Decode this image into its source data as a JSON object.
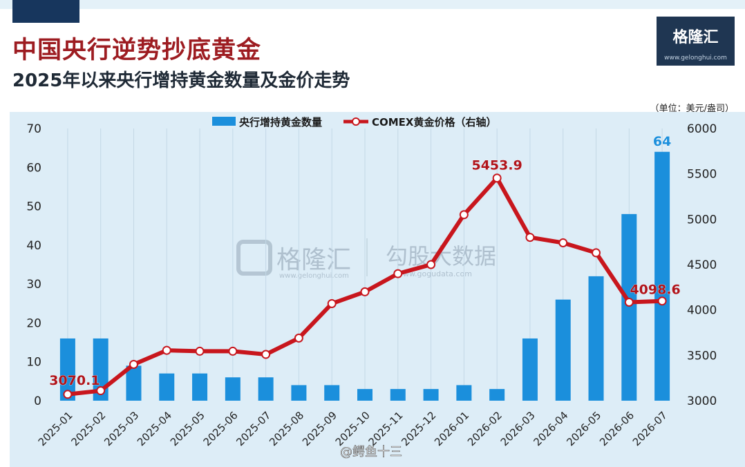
{
  "header": {
    "title": "中国央行逆势抄底黄金",
    "subtitle": "2025年以来央行增持黄金数量及金价走势",
    "unit": "（单位：美元/盎司）",
    "logo_text": "格隆汇",
    "logo_url": "www.gelonghui.com"
  },
  "watermark": {
    "brand": "格隆汇",
    "brand_url": "www.gelonghui.com",
    "source": "勾股大数据",
    "source_url": "www.gogudata.com",
    "weibo": "@鳄鱼十三"
  },
  "colors": {
    "bar": "#1b8fdc",
    "line": "#c8161d",
    "background": "#ddedf7",
    "bar_label": "#1b8fdc",
    "line_label": "#b0141b"
  },
  "chart_data": {
    "type": "bar+line",
    "categories": [
      "2025-01",
      "2025-02",
      "2025-03",
      "2025-04",
      "2025-05",
      "2025-06",
      "2025-07",
      "2025-08",
      "2025-09",
      "2025-10",
      "2025-11",
      "2025-12",
      "2026-01",
      "2026-02",
      "2026-03",
      "2026-04",
      "2026-05",
      "2026-06",
      "2026-07"
    ],
    "series": [
      {
        "name": "央行增持黄金数量",
        "type": "bar",
        "axis": "left",
        "values": [
          16,
          16,
          9,
          7,
          7,
          6,
          6,
          4,
          4,
          3,
          3,
          3,
          4,
          3,
          16,
          26,
          32,
          48,
          64
        ]
      },
      {
        "name": "COMEX黄金价格（右轴）",
        "type": "line",
        "axis": "right",
        "values": [
          3070.1,
          3110,
          3400,
          3555,
          3545,
          3545,
          3510,
          3690,
          4070,
          4200,
          4400,
          4500,
          5050,
          5453.9,
          4800,
          4740,
          4630,
          4085,
          4098.6
        ]
      }
    ],
    "left_axis": {
      "ylim": [
        0,
        70
      ],
      "ticks": [
        0,
        10,
        20,
        30,
        40,
        50,
        60,
        70
      ]
    },
    "right_axis": {
      "ylim": [
        3000,
        6000
      ],
      "ticks": [
        3000,
        3500,
        4000,
        4500,
        5000,
        5500,
        6000
      ]
    },
    "data_labels": [
      {
        "series": 1,
        "index": 0,
        "text": "3070.1"
      },
      {
        "series": 1,
        "index": 13,
        "text": "5453.9"
      },
      {
        "series": 1,
        "index": 18,
        "text": "4098.6"
      },
      {
        "series": 0,
        "index": 18,
        "text": "64"
      }
    ],
    "grid": "vertical",
    "legend": "top-center"
  }
}
